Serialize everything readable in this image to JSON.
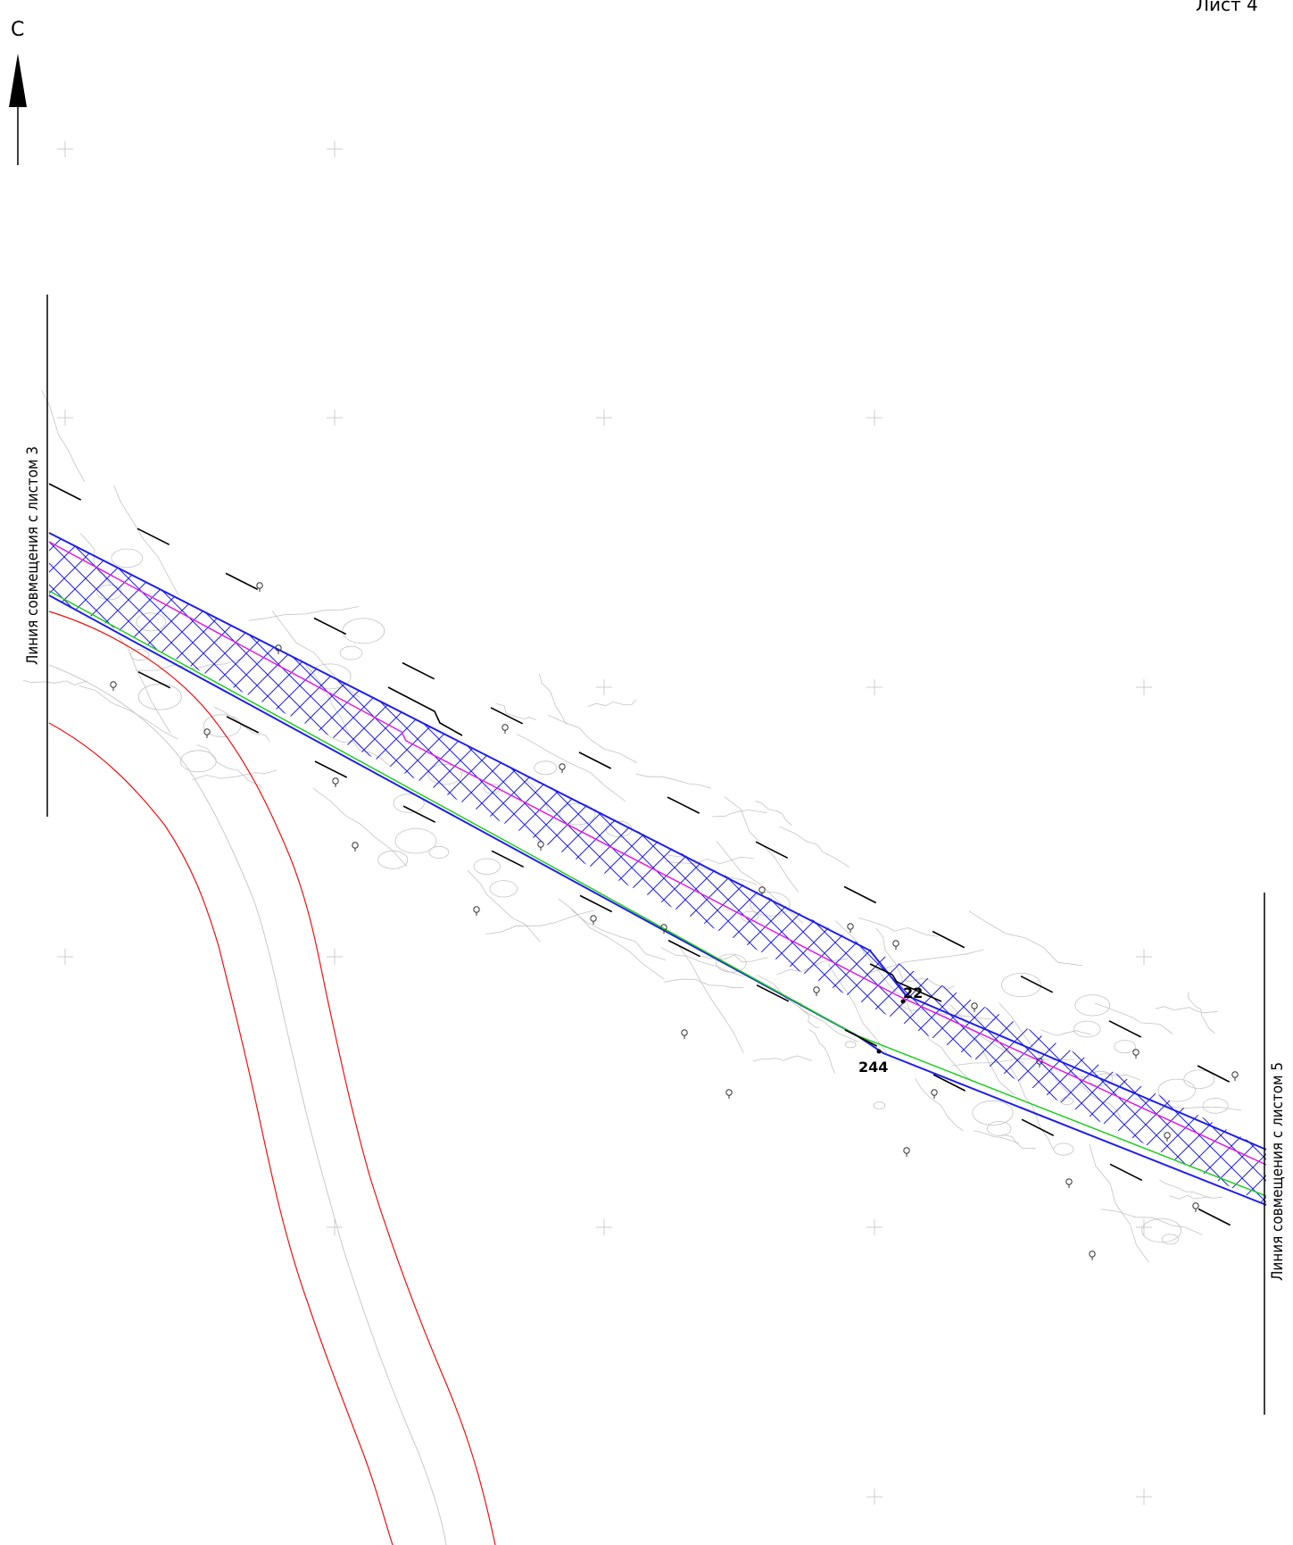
{
  "sheet_label": "Лист 4",
  "north_letter": "С",
  "match_line_left": "Линия совмещения с листом 3",
  "match_line_right": "Линия совмещения с листом 5",
  "point_labels": {
    "p1": "22",
    "p2": "244"
  },
  "colors": {
    "boundary": "#1f1fe6",
    "hatch": "#1f1fe6",
    "axis": "#e01be0",
    "edge": "#22cc22",
    "river": "#ee1111",
    "river_center": "#c8c8c8",
    "contours": "#bdbdbd",
    "ink": "#000000"
  },
  "icons": [
    "north-arrow-icon",
    "tree-icon",
    "grid-cross-icon"
  ]
}
